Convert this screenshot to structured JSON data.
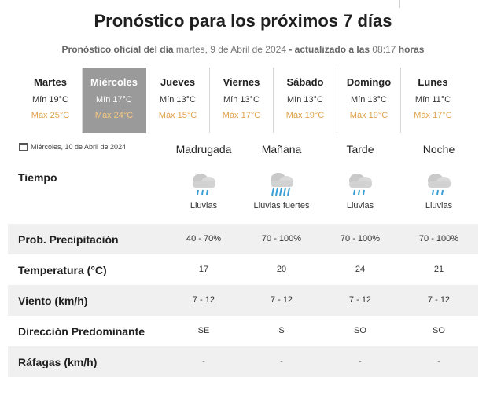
{
  "header": {
    "title": "Pronóstico para los próximos 7 días",
    "subtitle": {
      "prefix": "Pronóstico oficial del día",
      "date": " martes, 9 de Abril de 2024 ",
      "middle": "- actualizado a las",
      "time": " 08:17 ",
      "suffix": "horas"
    }
  },
  "days": [
    {
      "name": "Martes",
      "min": "Mín 19°C",
      "max": "Máx 25°C",
      "selected": false
    },
    {
      "name": "Miércoles",
      "min": "Mín 17°C",
      "max": "Máx 24°C",
      "selected": true
    },
    {
      "name": "Jueves",
      "min": "Mín 13°C",
      "max": "Máx 15°C",
      "selected": false
    },
    {
      "name": "Viernes",
      "min": "Mín 13°C",
      "max": "Máx 17°C",
      "selected": false
    },
    {
      "name": "Sábado",
      "min": "Mín 13°C",
      "max": "Máx 19°C",
      "selected": false
    },
    {
      "name": "Domingo",
      "min": "Mín 13°C",
      "max": "Máx 19°C",
      "selected": false
    },
    {
      "name": "Lunes",
      "min": "Mín 11°C",
      "max": "Máx 17°C",
      "selected": false
    }
  ],
  "detail": {
    "date": "Miércoles, 10 de Abril de 2024",
    "periods": [
      "Madrugada",
      "Mañana",
      "Tarde",
      "Noche"
    ],
    "tiempo_label": "Tiempo",
    "weather": [
      {
        "icon": "rain-cloud-icon",
        "desc": "Lluvias"
      },
      {
        "icon": "heavy-rain-cloud-icon",
        "desc": "Lluvias fuertes"
      },
      {
        "icon": "rain-cloud-icon",
        "desc": "Lluvias"
      },
      {
        "icon": "rain-cloud-icon",
        "desc": "Lluvias"
      }
    ],
    "rows": [
      {
        "label": "Prob. Precipitación",
        "values": [
          "40 - 70%",
          "70 - 100%",
          "70 - 100%",
          "70 - 100%"
        ],
        "shade": true
      },
      {
        "label": "Temperatura (°C)",
        "values": [
          "17",
          "20",
          "24",
          "21"
        ],
        "shade": false
      },
      {
        "label": "Viento (km/h)",
        "values": [
          "7 - 12",
          "7 - 12",
          "7 - 12",
          "7 - 12"
        ],
        "shade": true
      },
      {
        "label": "Dirección Predominante",
        "values": [
          "SE",
          "S",
          "SO",
          "SO"
        ],
        "shade": false
      },
      {
        "label": "Ráfagas (km/h)",
        "values": [
          "-",
          "-",
          "-",
          "-"
        ],
        "shade": true
      }
    ]
  },
  "colors": {
    "selected_day_bg": "#9a9a9a",
    "max_temp": "#e0a24a",
    "row_shade": "#f0f0f0",
    "rain_drop": "#3a9fd6"
  }
}
